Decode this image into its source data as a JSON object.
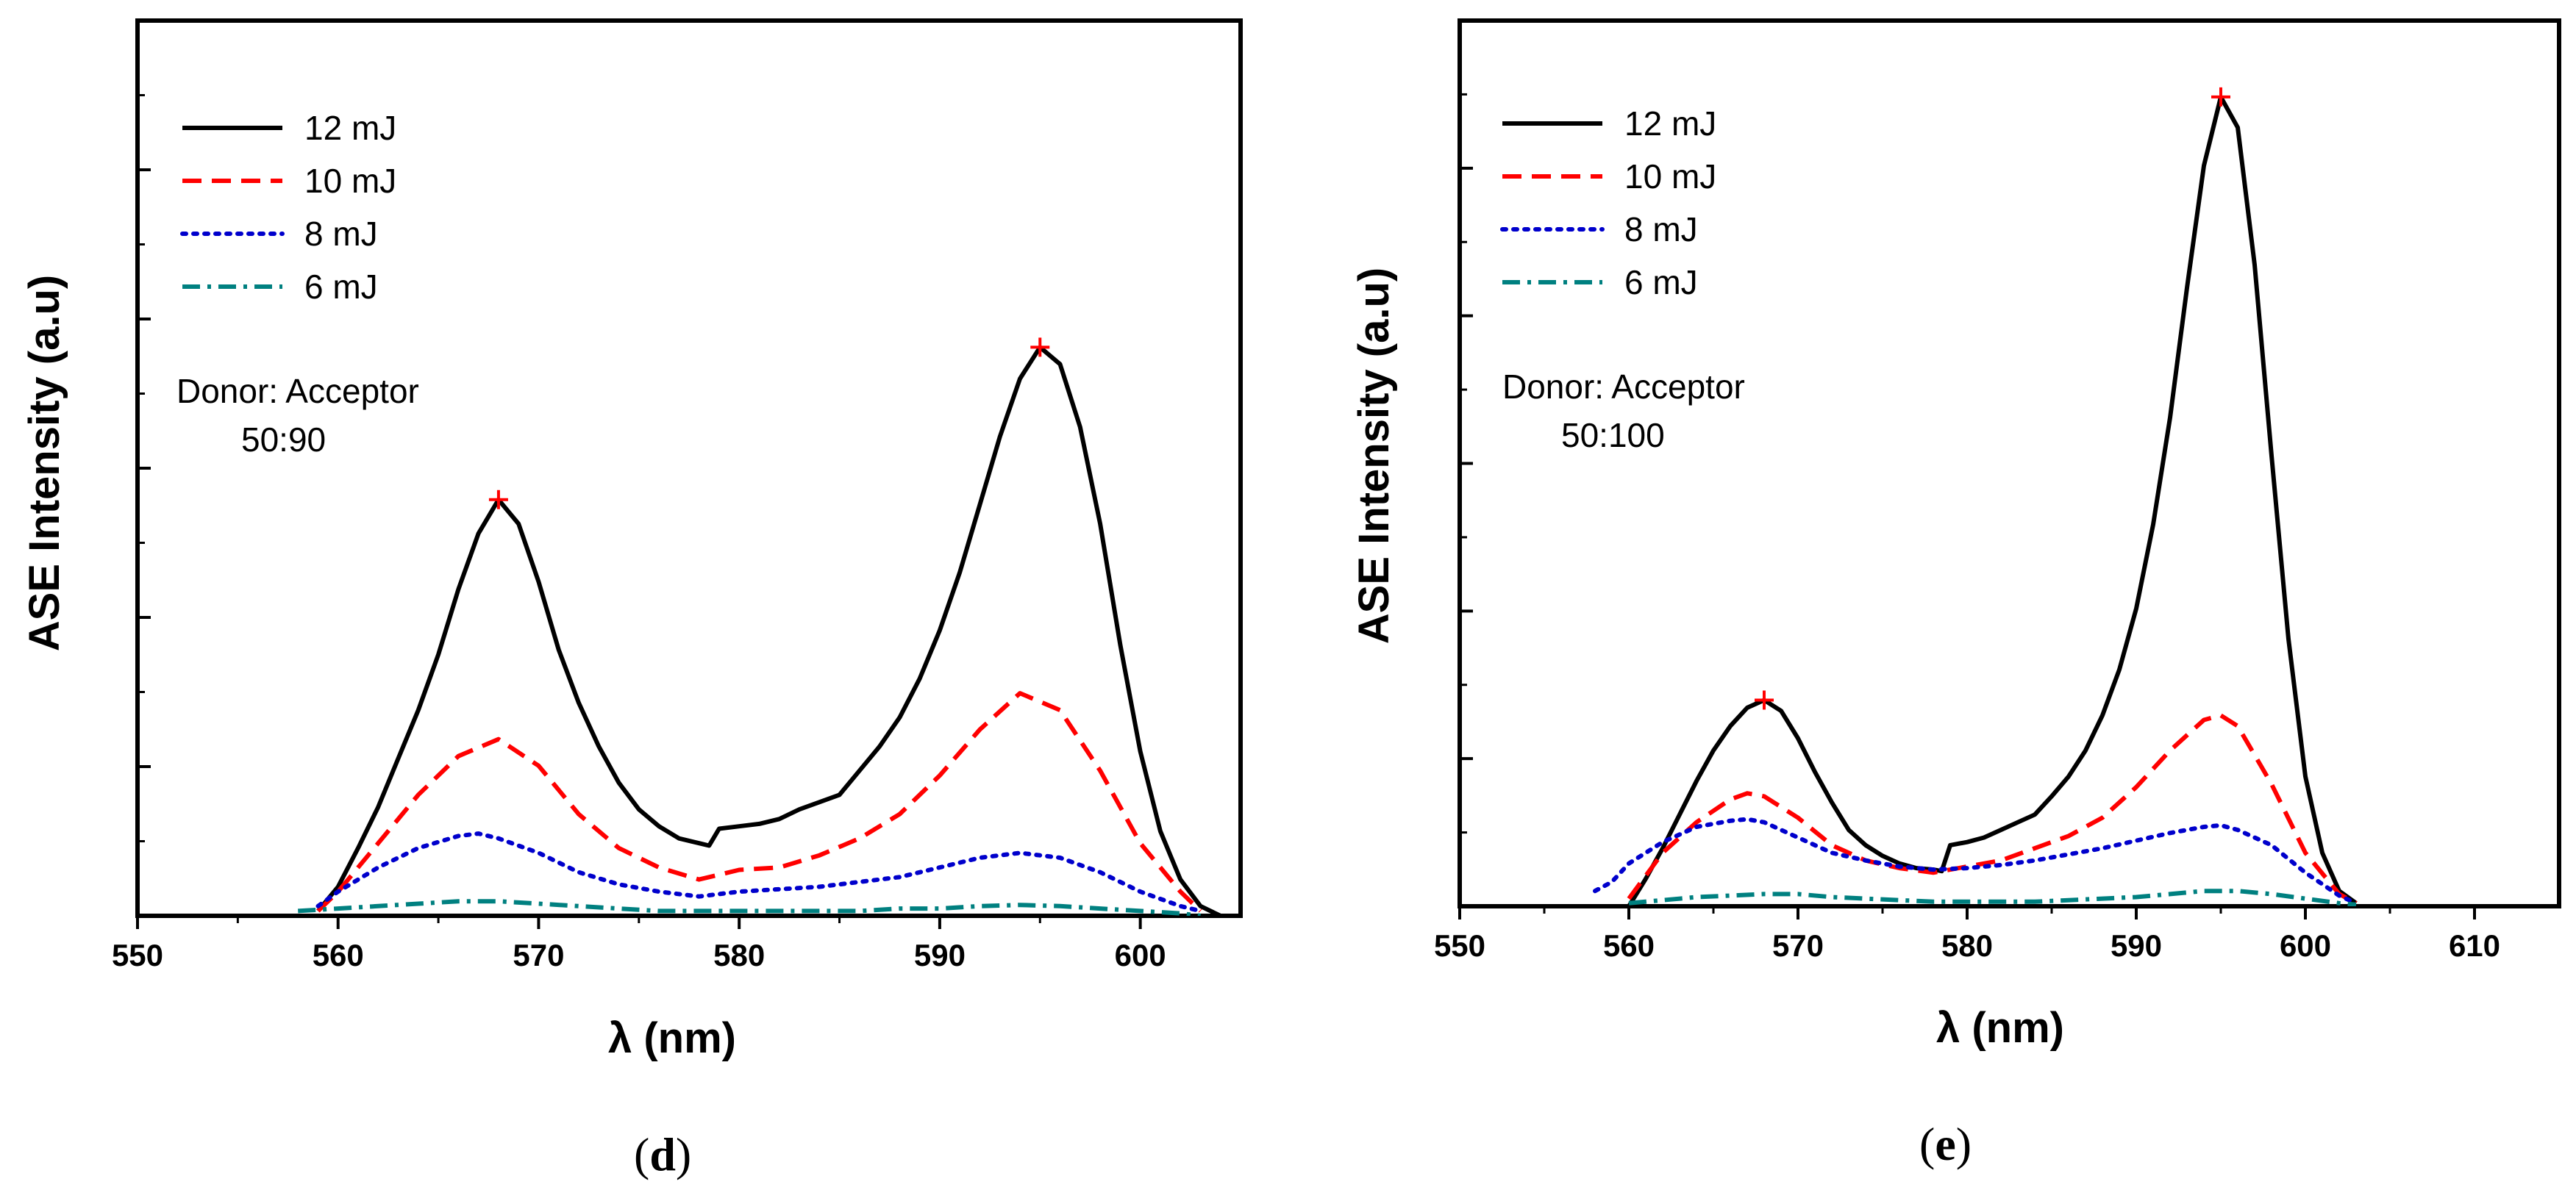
{
  "chart_data": [
    {
      "type": "line",
      "panel": "d",
      "caption_open": "(",
      "caption_letter": "d",
      "caption_close": ")",
      "xlabel": "λ (nm)",
      "ylabel": "ASE Intensity (a.u)",
      "xlim": [
        550,
        605
      ],
      "ylim": [
        0,
        3.7
      ],
      "x_ticks": [
        550,
        560,
        570,
        580,
        590,
        600
      ],
      "x_tick_labels": [
        "550",
        "560",
        "570",
        "580",
        "590",
        "600"
      ],
      "note_line1": "Donor: Acceptor",
      "note_line2": "50:90",
      "peak_markers": [
        [
          568,
          1.72
        ],
        [
          595,
          2.35
        ]
      ],
      "series": [
        {
          "name": "12 mJ",
          "color": "#000000",
          "style": "solid",
          "x": [
            559,
            560,
            561,
            562,
            563,
            564,
            565,
            566,
            567,
            568,
            569,
            570,
            571,
            572,
            573,
            574,
            575,
            576,
            577,
            578,
            578.5,
            579,
            580,
            581,
            582,
            583,
            584,
            585,
            586,
            587,
            588,
            589,
            590,
            591,
            592,
            593,
            594,
            595,
            596,
            597,
            598,
            599,
            600,
            601,
            602,
            603,
            604
          ],
          "y": [
            0.02,
            0.12,
            0.28,
            0.45,
            0.65,
            0.85,
            1.08,
            1.35,
            1.58,
            1.72,
            1.62,
            1.38,
            1.1,
            0.88,
            0.7,
            0.55,
            0.44,
            0.37,
            0.32,
            0.3,
            0.29,
            0.36,
            0.37,
            0.38,
            0.4,
            0.44,
            0.47,
            0.5,
            0.6,
            0.7,
            0.82,
            0.98,
            1.18,
            1.42,
            1.7,
            1.98,
            2.22,
            2.35,
            2.28,
            2.02,
            1.62,
            1.12,
            0.68,
            0.35,
            0.15,
            0.04,
            0.0
          ]
        },
        {
          "name": "10 mJ",
          "color": "#ff0000",
          "style": "dashed",
          "x": [
            559,
            560,
            562,
            564,
            566,
            568,
            570,
            572,
            574,
            576,
            578,
            580,
            582,
            584,
            586,
            588,
            590,
            592,
            594,
            596,
            598,
            600,
            602,
            603
          ],
          "y": [
            0.02,
            0.1,
            0.3,
            0.5,
            0.66,
            0.73,
            0.62,
            0.42,
            0.28,
            0.2,
            0.15,
            0.19,
            0.2,
            0.25,
            0.32,
            0.42,
            0.58,
            0.77,
            0.92,
            0.85,
            0.6,
            0.3,
            0.1,
            0.02
          ]
        },
        {
          "name": "8 mJ",
          "color": "#0000cc",
          "style": "dotted",
          "x": [
            559,
            560,
            562,
            564,
            566,
            567,
            568,
            570,
            572,
            574,
            576,
            578,
            580,
            582,
            584,
            586,
            588,
            590,
            592,
            594,
            596,
            598,
            600,
            602,
            603
          ],
          "y": [
            0.04,
            0.1,
            0.2,
            0.28,
            0.33,
            0.34,
            0.32,
            0.26,
            0.18,
            0.13,
            0.1,
            0.08,
            0.1,
            0.11,
            0.12,
            0.14,
            0.16,
            0.2,
            0.24,
            0.26,
            0.24,
            0.18,
            0.1,
            0.04,
            0.02
          ]
        },
        {
          "name": "6 mJ",
          "color": "#008080",
          "style": "dashdot",
          "x": [
            558,
            560,
            562,
            564,
            566,
            567,
            568,
            570,
            572,
            574,
            576,
            578,
            580,
            582,
            584,
            586,
            588,
            590,
            592,
            594,
            596,
            598,
            600,
            602,
            603
          ],
          "y": [
            0.02,
            0.03,
            0.04,
            0.05,
            0.06,
            0.06,
            0.06,
            0.05,
            0.04,
            0.03,
            0.02,
            0.02,
            0.02,
            0.02,
            0.02,
            0.02,
            0.03,
            0.03,
            0.04,
            0.045,
            0.04,
            0.03,
            0.02,
            0.01,
            0.0
          ]
        }
      ]
    },
    {
      "type": "line",
      "panel": "e",
      "caption_open": "(",
      "caption_letter": "e",
      "caption_close": ")",
      "xlabel": "λ (nm)",
      "ylabel": "ASE Intensity (a.u)",
      "xlim": [
        550,
        615
      ],
      "ylim": [
        0,
        5.8
      ],
      "x_ticks": [
        550,
        560,
        570,
        580,
        590,
        600,
        610
      ],
      "x_tick_labels": [
        "550",
        "560",
        "570",
        "580",
        "590",
        "600",
        "610"
      ],
      "note_line1": "Donor: Acceptor",
      "note_line2": "50:100",
      "peak_markers": [
        [
          568,
          1.35
        ],
        [
          595,
          5.3
        ]
      ],
      "series": [
        {
          "name": "12 mJ",
          "color": "#000000",
          "style": "solid",
          "x": [
            560,
            561,
            562,
            563,
            564,
            565,
            566,
            567,
            568,
            569,
            570,
            571,
            572,
            573,
            574,
            575,
            576,
            577,
            578,
            578.5,
            579,
            580,
            581,
            582,
            583,
            584,
            585,
            586,
            587,
            588,
            589,
            590,
            591,
            592,
            593,
            594,
            595,
            596,
            597,
            598,
            599,
            600,
            601,
            602,
            603
          ],
          "y": [
            0.0,
            0.18,
            0.38,
            0.6,
            0.82,
            1.02,
            1.18,
            1.3,
            1.35,
            1.28,
            1.1,
            0.88,
            0.68,
            0.5,
            0.4,
            0.33,
            0.28,
            0.25,
            0.24,
            0.23,
            0.4,
            0.42,
            0.45,
            0.5,
            0.55,
            0.6,
            0.72,
            0.85,
            1.02,
            1.25,
            1.55,
            1.95,
            2.5,
            3.2,
            4.05,
            4.85,
            5.3,
            5.1,
            4.2,
            2.95,
            1.75,
            0.85,
            0.35,
            0.1,
            0.02
          ]
        },
        {
          "name": "10 mJ",
          "color": "#ff0000",
          "style": "dashed",
          "x": [
            560,
            561,
            562,
            564,
            566,
            567,
            568,
            570,
            572,
            574,
            576,
            578,
            580,
            582,
            584,
            586,
            588,
            590,
            592,
            594,
            595,
            596,
            598,
            600,
            602,
            603
          ],
          "y": [
            0.05,
            0.2,
            0.35,
            0.55,
            0.7,
            0.74,
            0.72,
            0.58,
            0.4,
            0.3,
            0.25,
            0.22,
            0.26,
            0.3,
            0.38,
            0.46,
            0.58,
            0.78,
            1.02,
            1.22,
            1.25,
            1.18,
            0.8,
            0.35,
            0.08,
            0.02
          ]
        },
        {
          "name": "8 mJ",
          "color": "#0000cc",
          "style": "dotted",
          "x": [
            558,
            559,
            560,
            562,
            564,
            566,
            567,
            568,
            570,
            572,
            574,
            576,
            578,
            580,
            582,
            584,
            586,
            588,
            590,
            592,
            594,
            595,
            596,
            598,
            600,
            602,
            603
          ],
          "y": [
            0.1,
            0.16,
            0.28,
            0.42,
            0.52,
            0.56,
            0.57,
            0.55,
            0.45,
            0.35,
            0.3,
            0.26,
            0.24,
            0.25,
            0.27,
            0.3,
            0.34,
            0.38,
            0.43,
            0.48,
            0.52,
            0.53,
            0.5,
            0.4,
            0.22,
            0.07,
            0.02
          ]
        },
        {
          "name": "6 mJ",
          "color": "#008080",
          "style": "dashdot",
          "x": [
            560,
            562,
            564,
            566,
            568,
            570,
            572,
            574,
            576,
            578,
            580,
            582,
            584,
            586,
            588,
            590,
            592,
            594,
            596,
            598,
            600,
            602,
            603
          ],
          "y": [
            0.02,
            0.04,
            0.06,
            0.07,
            0.08,
            0.08,
            0.06,
            0.05,
            0.04,
            0.03,
            0.03,
            0.03,
            0.03,
            0.04,
            0.05,
            0.06,
            0.08,
            0.1,
            0.1,
            0.08,
            0.05,
            0.02,
            0.01
          ]
        }
      ]
    }
  ]
}
